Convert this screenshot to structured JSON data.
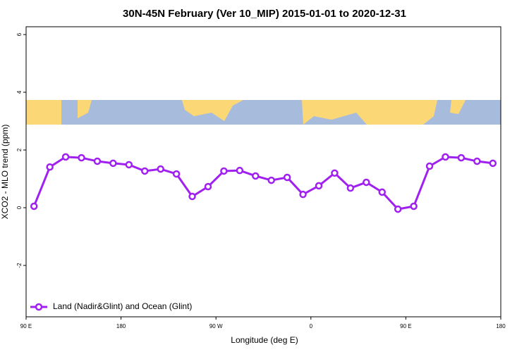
{
  "chart_data": {
    "type": "line",
    "title": "30N-45N February (Ver 10_MIP)   2015-01-01 to 2020-12-31",
    "x_label": "Longitude (deg E)",
    "y_label": "XCO2 - MLO trend (ppm)",
    "x": [
      97.5,
      112.5,
      127.5,
      142.5,
      157.5,
      172.5,
      187.5,
      202.5,
      217.5,
      232.5,
      247.5,
      262.5,
      277.5,
      292.5,
      307.5,
      322.5,
      337.5,
      352.5,
      367.5,
      382.5,
      397.5,
      412.5,
      427.5,
      442.5,
      457.5,
      472.5,
      487.5,
      502.5,
      517.5,
      532.5
    ],
    "series": [
      {
        "name": "Land (Nadir&Glint) and Ocean (Glint)",
        "color": "#a020f0",
        "values": [
          0.05,
          1.41,
          1.76,
          1.73,
          1.61,
          1.54,
          1.49,
          1.27,
          1.34,
          1.17,
          0.39,
          0.73,
          1.27,
          1.29,
          1.1,
          0.95,
          1.05,
          0.46,
          0.76,
          1.2,
          0.68,
          0.88,
          0.54,
          -0.05,
          0.05,
          1.44,
          1.76,
          1.73,
          1.61,
          1.54
        ]
      }
    ],
    "xlim": [
      90,
      540
    ],
    "xticks": [
      {
        "value": 90,
        "label": "90 E"
      },
      180,
      {
        "value": 270,
        "label": "90 W"
      },
      {
        "value": 360,
        "label": "0"
      },
      {
        "value": 450,
        "label": "90 E"
      },
      {
        "value": 540,
        "label": "180"
      }
    ],
    "ylim": [
      -3.78,
      6.27
    ],
    "yticks": [
      -2,
      0,
      2,
      4,
      6
    ],
    "legend_position": "bottom-left"
  }
}
